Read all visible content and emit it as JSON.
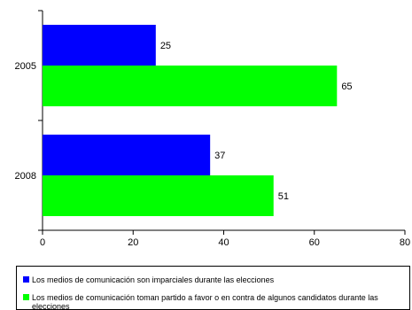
{
  "chart_data": {
    "type": "bar",
    "orientation": "horizontal",
    "categories": [
      "2005",
      "2008"
    ],
    "series": [
      {
        "name": "Los medios de comunicación son imparciales durante las elecciones",
        "values": [
          25,
          37
        ],
        "color": "#0000FF"
      },
      {
        "name": "Los medios de comunicación toman partido a favor o en contra de algunos candidatos durante las elecciones",
        "values": [
          65,
          51
        ],
        "color": "#00FF00"
      }
    ],
    "xlim": [
      0,
      80
    ],
    "xticks": [
      0,
      20,
      40,
      60,
      80
    ],
    "grid": false,
    "legend_position": "bottom"
  }
}
